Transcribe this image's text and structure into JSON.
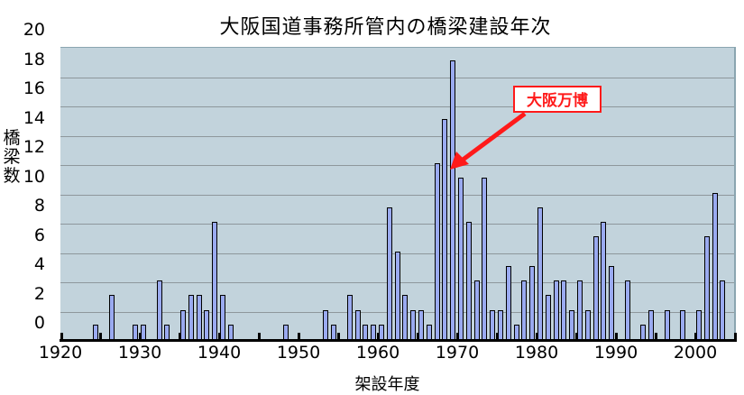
{
  "chart_data": {
    "type": "bar",
    "title": "大阪国道事務所管内の橋梁建設年次",
    "xlabel": "架設年度",
    "ylabel": "橋梁数",
    "ylim": [
      0,
      20
    ],
    "xlim": [
      1920,
      2005
    ],
    "y_ticks": [
      "20",
      "18",
      "16",
      "14",
      "12",
      "10",
      "8",
      "6",
      "4",
      "2",
      "0"
    ],
    "x_ticks": [
      "1920",
      "1930",
      "1940",
      "1950",
      "1960",
      "1970",
      "1980",
      "1990",
      "2000"
    ],
    "grid": true,
    "legend": null,
    "x": [
      1924,
      1926,
      1929,
      1930,
      1932,
      1933,
      1935,
      1936,
      1937,
      1938,
      1939,
      1940,
      1941,
      1948,
      1953,
      1954,
      1956,
      1957,
      1958,
      1959,
      1960,
      1961,
      1962,
      1963,
      1964,
      1965,
      1966,
      1967,
      1968,
      1969,
      1970,
      1971,
      1972,
      1973,
      1974,
      1975,
      1976,
      1977,
      1978,
      1979,
      1980,
      1981,
      1982,
      1983,
      1984,
      1985,
      1986,
      1987,
      1988,
      1989,
      1991,
      1993,
      1994,
      1996,
      1998,
      2000,
      2001,
      2002,
      2003
    ],
    "values": [
      1,
      3,
      1,
      1,
      4,
      1,
      2,
      3,
      3,
      2,
      8,
      3,
      1,
      1,
      2,
      1,
      3,
      2,
      1,
      1,
      1,
      9,
      6,
      3,
      2,
      2,
      1,
      12,
      15,
      19,
      11,
      8,
      4,
      11,
      2,
      2,
      5,
      1,
      4,
      5,
      9,
      3,
      4,
      4,
      2,
      4,
      2,
      7,
      8,
      5,
      4,
      1,
      2,
      2,
      2,
      2,
      7,
      10,
      4
    ],
    "annotations": [
      {
        "text": "大阪万博",
        "points_to_year": 1969,
        "color": "#ff1a1a"
      }
    ],
    "colors": {
      "plot_bg": "#c2d3dc",
      "bar_fill": "#9aaaf0",
      "bar_border": "#000000",
      "grid": "#8e979c"
    }
  },
  "labels": {
    "title": "大阪国道事務所管内の橋梁建設年次",
    "ylabel": "橋梁数",
    "xlabel": "架設年度",
    "annotation": "大阪万博"
  }
}
